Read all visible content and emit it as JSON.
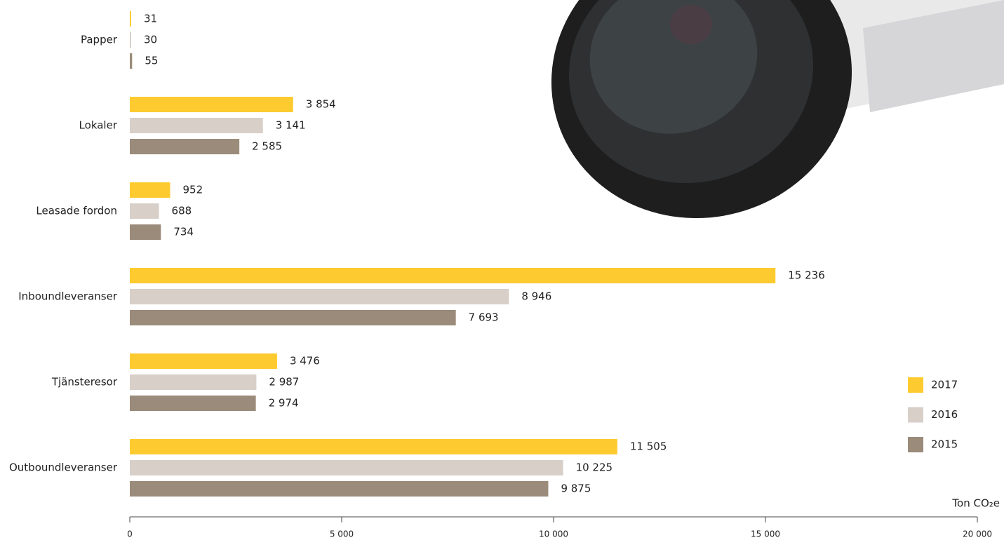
{
  "chart_data": {
    "type": "bar",
    "orientation": "horizontal",
    "categories": [
      "Papper",
      "Lokaler",
      "Leasade fordon",
      "Inboundleveranser",
      "Tjänsteresor",
      "Outboundleveranser"
    ],
    "series": [
      {
        "name": "2017",
        "color": "#fdcb2f",
        "values": [
          31,
          3854,
          952,
          15236,
          3476,
          11505
        ],
        "value_labels": [
          "31",
          "3 854",
          "952",
          "15 236",
          "3 476",
          "11 505"
        ]
      },
      {
        "name": "2016",
        "color": "#d8cfc8",
        "values": [
          30,
          3141,
          688,
          8946,
          2987,
          10225
        ],
        "value_labels": [
          "30",
          "3 141",
          "688",
          "8 946",
          "2 987",
          "10 225"
        ]
      },
      {
        "name": "2015",
        "color": "#9b8b7a",
        "values": [
          55,
          2585,
          734,
          7693,
          2974,
          9875
        ],
        "value_labels": [
          "55",
          "2 585",
          "734",
          "7 693",
          "2 974",
          "9 875"
        ]
      }
    ],
    "x_label": "Ton CO₂e",
    "xlim": [
      0,
      20000
    ],
    "xticks": [
      0,
      {
        "value": 5000,
        "label": "5 000"
      },
      {
        "value": 10000,
        "label": "10 000"
      },
      {
        "value": 15000,
        "label": "15 000"
      },
      {
        "value": 20000,
        "label": "20 000"
      }
    ],
    "legend": "bottom-right"
  }
}
